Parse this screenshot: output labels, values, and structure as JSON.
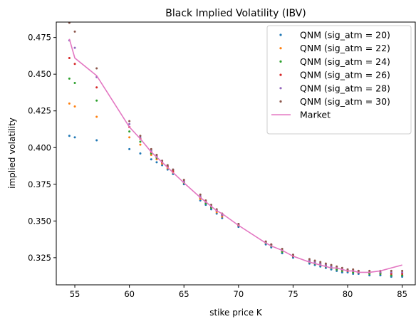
{
  "chart_data": {
    "type": "scatter",
    "title": "Black Implied Volatility (IBV)",
    "xlabel": "stike price K",
    "ylabel": "implied volatility",
    "xlim": [
      53.3,
      86.2
    ],
    "ylim": [
      0.3065,
      0.4855
    ],
    "xticks": [
      55,
      60,
      65,
      70,
      75,
      80,
      85
    ],
    "yticks": [
      0.325,
      0.35,
      0.375,
      0.4,
      0.425,
      0.45,
      0.475
    ],
    "ytick_labels": [
      "0.325",
      "0.350",
      "0.375",
      "0.400",
      "0.425",
      "0.450",
      "0.475"
    ],
    "legend_position": "upper right",
    "grid": false,
    "market": {
      "name": "Market",
      "color": "#e377c2",
      "x": [
        54.5,
        55,
        57,
        60,
        61,
        62,
        63,
        64,
        65,
        66.5,
        67,
        67.5,
        68,
        68.5,
        70,
        72.5,
        73,
        74,
        75,
        76.5,
        77,
        77.5,
        78,
        78.5,
        79,
        79.5,
        80,
        80.5,
        81,
        82,
        83,
        84,
        85
      ],
      "y": [
        0.474,
        0.461,
        0.449,
        0.414,
        0.406,
        0.397,
        0.39,
        0.383,
        0.376,
        0.366,
        0.363,
        0.36,
        0.357,
        0.355,
        0.347,
        0.335,
        0.333,
        0.33,
        0.326,
        0.322,
        0.321,
        0.32,
        0.319,
        0.318,
        0.318,
        0.317,
        0.316,
        0.316,
        0.315,
        0.315,
        0.316,
        0.318,
        0.32
      ]
    },
    "series": [
      {
        "name": "QNM (sig_atm = 20)",
        "color": "#1f77b4",
        "x": [
          54.5,
          55,
          57,
          60,
          61,
          62,
          62.5,
          63,
          63.5,
          64,
          65,
          66.5,
          67,
          67.5,
          68,
          68.5,
          70,
          72.5,
          73,
          74,
          75,
          76.5,
          77,
          77.5,
          78,
          78.5,
          79,
          79.5,
          80,
          80.5,
          81,
          82,
          83,
          84,
          85
        ],
        "y": [
          0.408,
          0.407,
          0.405,
          0.399,
          0.396,
          0.392,
          0.39,
          0.388,
          0.385,
          0.382,
          0.375,
          0.364,
          0.361,
          0.358,
          0.355,
          0.352,
          0.346,
          0.334,
          0.332,
          0.328,
          0.325,
          0.321,
          0.32,
          0.319,
          0.318,
          0.317,
          0.316,
          0.315,
          0.315,
          0.314,
          0.314,
          0.313,
          0.313,
          0.312,
          0.312
        ]
      },
      {
        "name": "QNM (sig_atm = 22)",
        "color": "#ff7f0e",
        "x": [
          54.5,
          55,
          57,
          60,
          61,
          62,
          62.5,
          63,
          63.5,
          64,
          65,
          66.5,
          67,
          67.5,
          68,
          68.5,
          70,
          72.5,
          73,
          74,
          75,
          76.5,
          77,
          77.5,
          78,
          78.5,
          79,
          79.5,
          80,
          80.5,
          81,
          82,
          83,
          84,
          85
        ],
        "y": [
          0.43,
          0.428,
          0.421,
          0.407,
          0.402,
          0.395,
          0.392,
          0.389,
          0.386,
          0.383,
          0.376,
          0.365,
          0.362,
          0.359,
          0.356,
          0.353,
          0.347,
          0.335,
          0.333,
          0.329,
          0.326,
          0.322,
          0.321,
          0.32,
          0.319,
          0.318,
          0.317,
          0.316,
          0.316,
          0.315,
          0.315,
          0.314,
          0.314,
          0.313,
          0.313
        ]
      },
      {
        "name": "QNM (sig_atm = 24)",
        "color": "#2ca02c",
        "x": [
          54.5,
          55,
          57,
          60,
          61,
          62,
          62.5,
          63,
          63.5,
          64,
          65,
          66.5,
          67,
          67.5,
          68,
          68.5,
          70,
          72.5,
          73,
          74,
          75,
          76.5,
          77,
          77.5,
          78,
          78.5,
          79,
          79.5,
          80,
          80.5,
          81,
          82,
          83,
          84,
          85
        ],
        "y": [
          0.447,
          0.444,
          0.432,
          0.411,
          0.404,
          0.396,
          0.393,
          0.39,
          0.387,
          0.384,
          0.376,
          0.366,
          0.362,
          0.359,
          0.357,
          0.354,
          0.347,
          0.335,
          0.333,
          0.329,
          0.326,
          0.322,
          0.321,
          0.32,
          0.319,
          0.318,
          0.317,
          0.316,
          0.316,
          0.315,
          0.315,
          0.314,
          0.314,
          0.313,
          0.313
        ]
      },
      {
        "name": "QNM (sig_atm = 26)",
        "color": "#d62728",
        "x": [
          54.5,
          55,
          57,
          60,
          61,
          62,
          62.5,
          63,
          63.5,
          64,
          65,
          66.5,
          67,
          67.5,
          68,
          68.5,
          70,
          72.5,
          73,
          74,
          75,
          76.5,
          77,
          77.5,
          78,
          78.5,
          79,
          79.5,
          80,
          80.5,
          81,
          82,
          83,
          84,
          85
        ],
        "y": [
          0.461,
          0.457,
          0.441,
          0.414,
          0.406,
          0.397,
          0.394,
          0.39,
          0.387,
          0.384,
          0.377,
          0.366,
          0.363,
          0.36,
          0.357,
          0.354,
          0.347,
          0.336,
          0.334,
          0.33,
          0.326,
          0.323,
          0.322,
          0.321,
          0.32,
          0.319,
          0.318,
          0.317,
          0.316,
          0.316,
          0.315,
          0.315,
          0.315,
          0.314,
          0.314
        ]
      },
      {
        "name": "QNM (sig_atm = 28)",
        "color": "#9467bd",
        "x": [
          54.5,
          55,
          57,
          60,
          61,
          62,
          62.5,
          63,
          63.5,
          64,
          65,
          66.5,
          67,
          67.5,
          68,
          68.5,
          70,
          72.5,
          73,
          74,
          75,
          76.5,
          77,
          77.5,
          78,
          78.5,
          79,
          79.5,
          80,
          80.5,
          81,
          82,
          83,
          84,
          85
        ],
        "y": [
          0.473,
          0.468,
          0.448,
          0.416,
          0.407,
          0.398,
          0.394,
          0.391,
          0.388,
          0.385,
          0.377,
          0.367,
          0.363,
          0.36,
          0.357,
          0.354,
          0.348,
          0.336,
          0.334,
          0.33,
          0.327,
          0.323,
          0.322,
          0.321,
          0.32,
          0.319,
          0.318,
          0.317,
          0.317,
          0.316,
          0.316,
          0.315,
          0.315,
          0.315,
          0.315
        ]
      },
      {
        "name": "QNM (sig_atm = 30)",
        "color": "#8c564b",
        "x": [
          54.5,
          55,
          57,
          60,
          61,
          62,
          62.5,
          63,
          63.5,
          64,
          65,
          66.5,
          67,
          67.5,
          68,
          68.5,
          70,
          72.5,
          73,
          74,
          75,
          76.5,
          77,
          77.5,
          78,
          78.5,
          79,
          79.5,
          80,
          80.5,
          81,
          82,
          83,
          84,
          85
        ],
        "y": [
          0.485,
          0.479,
          0.454,
          0.418,
          0.408,
          0.399,
          0.395,
          0.391,
          0.388,
          0.385,
          0.378,
          0.368,
          0.364,
          0.361,
          0.358,
          0.355,
          0.348,
          0.336,
          0.334,
          0.331,
          0.327,
          0.324,
          0.323,
          0.322,
          0.321,
          0.32,
          0.319,
          0.318,
          0.317,
          0.317,
          0.316,
          0.316,
          0.316,
          0.316,
          0.316
        ]
      }
    ]
  }
}
